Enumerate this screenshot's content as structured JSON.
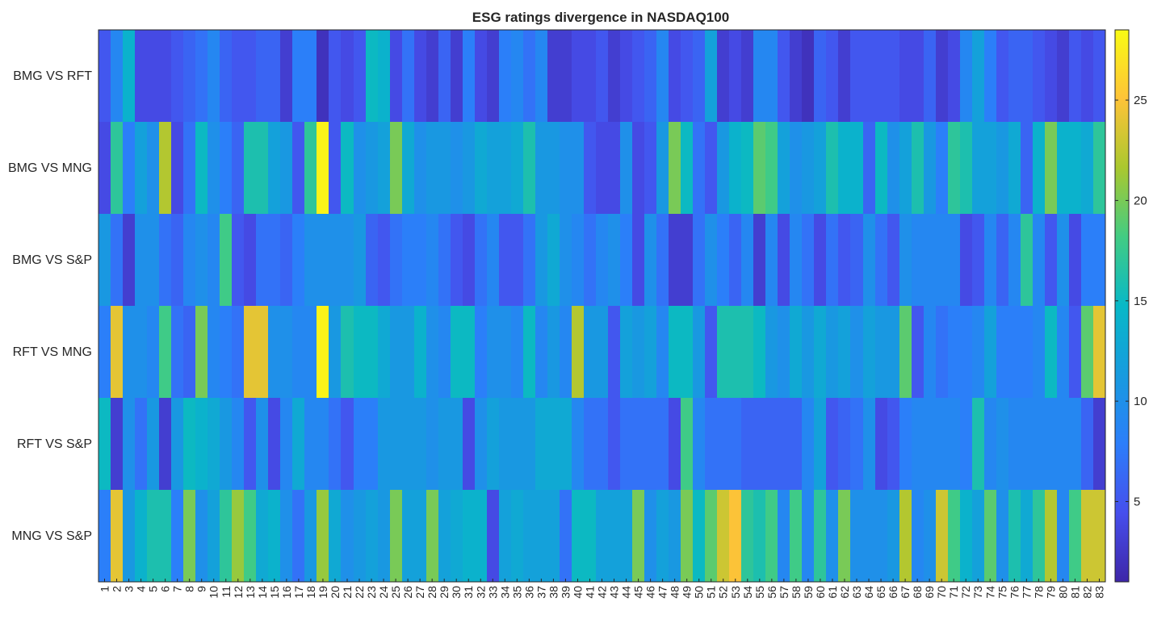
{
  "chart_data": {
    "type": "heatmap",
    "title": "ESG ratings divergence in NASDAQ100",
    "xlabel": "",
    "ylabel": "",
    "colormap": "parula",
    "clim": [
      1,
      28.5
    ],
    "colorbar_ticks": [
      5,
      10,
      15,
      20,
      25
    ],
    "rows": [
      "BMG VS RFT",
      "BMG VS MNG",
      "BMG VS S&P",
      "RFT VS MNG",
      "RFT VS S&P",
      "MNG VS S&P"
    ],
    "columns": [
      "1",
      "2",
      "3",
      "4",
      "5",
      "6",
      "7",
      "8",
      "9",
      "10",
      "11",
      "12",
      "13",
      "14",
      "15",
      "16",
      "17",
      "18",
      "19",
      "20",
      "21",
      "22",
      "23",
      "24",
      "25",
      "26",
      "27",
      "28",
      "29",
      "30",
      "31",
      "32",
      "33",
      "34",
      "35",
      "36",
      "37",
      "38",
      "39",
      "40",
      "41",
      "42",
      "43",
      "44",
      "45",
      "46",
      "47",
      "48",
      "49",
      "50",
      "51",
      "52",
      "53",
      "54",
      "55",
      "56",
      "57",
      "58",
      "59",
      "60",
      "61",
      "62",
      "63",
      "64",
      "65",
      "66",
      "67",
      "68",
      "69",
      "70",
      "71",
      "72",
      "73",
      "74",
      "75",
      "76",
      "77",
      "78",
      "79",
      "80",
      "81",
      "82",
      "83"
    ],
    "values": [
      [
        5,
        9,
        14,
        4,
        4,
        4,
        5,
        6,
        7,
        9,
        6,
        5,
        5,
        6,
        6,
        3,
        8,
        8,
        2,
        5,
        4,
        5,
        15,
        14,
        4,
        7,
        4,
        3,
        6,
        3,
        8,
        4,
        3,
        8,
        9,
        7,
        9,
        3,
        3,
        4,
        4,
        5,
        3,
        4,
        5,
        6,
        9,
        4,
        5,
        6,
        12,
        3,
        4,
        3,
        9,
        9,
        5,
        3,
        2,
        6,
        5,
        3,
        5,
        5,
        5,
        5,
        4,
        4,
        6,
        3,
        4,
        9,
        12,
        8,
        5,
        6,
        6,
        5,
        4,
        3,
        5,
        4,
        5
      ],
      [
        4,
        17,
        8,
        12,
        10,
        22,
        4,
        7,
        15,
        10,
        8,
        6,
        16,
        16,
        12,
        11,
        5,
        17,
        28,
        5,
        15,
        10,
        11,
        12,
        20,
        13,
        10,
        11,
        11,
        10,
        11,
        13,
        12,
        12,
        13,
        16,
        11,
        11,
        10,
        10,
        5,
        4,
        4,
        10,
        4,
        5,
        11,
        20,
        15,
        7,
        5,
        11,
        14,
        15,
        19,
        18,
        12,
        10,
        11,
        12,
        16,
        14,
        14,
        6,
        15,
        10,
        12,
        16,
        11,
        8,
        17,
        16,
        12,
        12,
        11,
        13,
        6,
        14,
        20,
        14,
        14,
        13,
        17
      ],
      [
        11,
        7,
        3,
        10,
        10,
        7,
        6,
        9,
        10,
        9,
        18,
        5,
        4,
        7,
        7,
        6,
        8,
        10,
        10,
        10,
        10,
        11,
        6,
        5,
        7,
        8,
        8,
        9,
        7,
        5,
        4,
        7,
        9,
        5,
        5,
        7,
        11,
        13,
        10,
        9,
        7,
        9,
        10,
        8,
        4,
        10,
        7,
        3,
        3,
        7,
        10,
        8,
        6,
        9,
        3,
        9,
        4,
        9,
        7,
        4,
        7,
        5,
        6,
        10,
        7,
        5,
        10,
        9,
        9,
        9,
        9,
        4,
        5,
        9,
        6,
        9,
        17,
        9,
        5,
        10,
        4,
        8,
        8
      ],
      [
        8,
        24,
        10,
        10,
        9,
        18,
        7,
        6,
        20,
        9,
        8,
        7,
        24,
        24,
        10,
        10,
        9,
        9,
        28,
        11,
        16,
        15,
        15,
        13,
        11,
        11,
        14,
        10,
        9,
        15,
        15,
        8,
        10,
        10,
        9,
        15,
        9,
        11,
        9,
        22,
        11,
        11,
        5,
        12,
        11,
        12,
        9,
        15,
        15,
        11,
        5,
        16,
        16,
        16,
        15,
        11,
        10,
        13,
        11,
        13,
        11,
        12,
        10,
        12,
        11,
        11,
        19,
        5,
        9,
        7,
        8,
        8,
        9,
        12,
        8,
        8,
        8,
        9,
        15,
        9,
        5,
        19,
        24
      ],
      [
        15,
        3,
        10,
        7,
        11,
        3,
        11,
        15,
        14,
        13,
        11,
        9,
        5,
        10,
        4,
        9,
        13,
        9,
        9,
        7,
        5,
        8,
        8,
        11,
        11,
        11,
        11,
        10,
        11,
        11,
        4,
        10,
        12,
        11,
        11,
        11,
        13,
        13,
        13,
        9,
        7,
        7,
        5,
        7,
        7,
        7,
        7,
        4,
        18,
        9,
        7,
        7,
        7,
        6,
        6,
        6,
        6,
        6,
        9,
        12,
        5,
        6,
        7,
        10,
        4,
        5,
        8,
        9,
        9,
        9,
        9,
        8,
        16,
        9,
        10,
        9,
        9,
        9,
        9,
        9,
        9,
        6,
        3
      ],
      [
        8,
        24,
        11,
        14,
        16,
        16,
        8,
        20,
        10,
        12,
        17,
        21,
        18,
        13,
        14,
        10,
        7,
        11,
        21,
        13,
        10,
        11,
        12,
        11,
        20,
        12,
        12,
        20,
        12,
        13,
        14,
        14,
        4,
        12,
        13,
        12,
        12,
        12,
        7,
        15,
        15,
        12,
        12,
        12,
        20,
        10,
        12,
        11,
        20,
        15,
        19,
        23,
        25,
        17,
        16,
        18,
        9,
        18,
        9,
        17,
        10,
        20,
        10,
        10,
        10,
        11,
        22,
        9,
        10,
        23,
        18,
        14,
        12,
        19,
        10,
        16,
        13,
        17,
        22,
        9,
        18,
        23,
        23
      ]
    ]
  }
}
